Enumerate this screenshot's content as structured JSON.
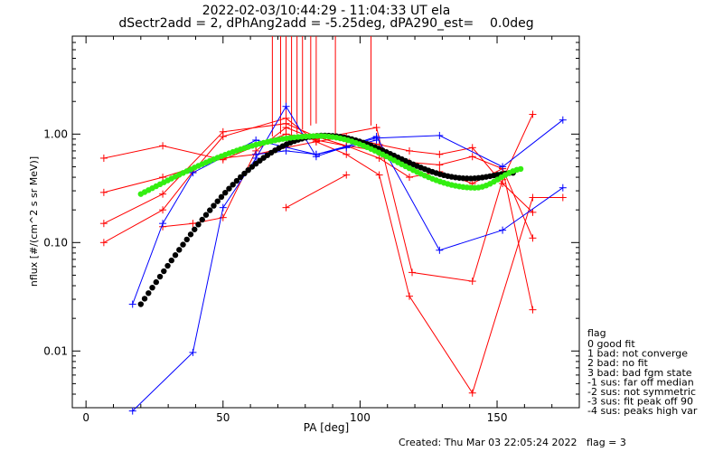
{
  "chart_data": {
    "type": "line",
    "title_line1": "2022-02-03/10:44:29 - 11:04:33 UT ela",
    "title_line2": "dSectr2add = 2, dPhAng2add = -5.25deg, dPA290_est=    0.0deg",
    "xlabel": "PA [deg]",
    "ylabel": "nflux [#/(cm^2 s sr MeV)]",
    "xlim": [
      -5,
      180
    ],
    "ylim": [
      0.003,
      8
    ],
    "yscale": "log",
    "x_ticks": [
      0,
      50,
      100,
      150
    ],
    "x_tick_labels": [
      "0",
      "50",
      "100",
      "150"
    ],
    "y_ticks": [
      0.01,
      0.1,
      1.0
    ],
    "y_tick_labels": [
      "0.01",
      "0.10",
      "1.00"
    ],
    "grid": false,
    "colors": {
      "red": "#ff0000",
      "blue": "#0000ff",
      "black": "#000000",
      "green": "#33ee11"
    },
    "red_series": [
      [
        [
          6.5,
          0.6
        ],
        [
          28,
          0.78
        ],
        [
          50,
          0.58
        ],
        [
          62,
          0.78
        ],
        [
          73,
          1.0
        ],
        [
          84,
          0.88
        ],
        [
          95,
          0.78
        ],
        [
          107,
          0.7
        ],
        [
          118,
          0.55
        ],
        [
          129,
          0.52
        ],
        [
          141,
          0.62
        ],
        [
          152,
          0.48
        ],
        [
          163,
          0.11
        ]
      ],
      [
        [
          6.5,
          0.29
        ],
        [
          28,
          0.4
        ],
        [
          50,
          0.6
        ],
        [
          62,
          0.65
        ],
        [
          73,
          0.75
        ],
        [
          84,
          0.85
        ],
        [
          95,
          0.95
        ],
        [
          107,
          0.8
        ],
        [
          118,
          0.7
        ],
        [
          129,
          0.65
        ],
        [
          141,
          0.75
        ],
        [
          152,
          0.35
        ],
        [
          163,
          0.19
        ]
      ],
      [
        [
          6.5,
          0.15
        ],
        [
          28,
          0.28
        ],
        [
          50,
          1.05
        ],
        [
          73,
          1.25
        ],
        [
          84,
          0.95
        ],
        [
          95,
          0.78
        ],
        [
          107,
          0.6
        ],
        [
          118,
          0.4
        ],
        [
          129,
          0.45
        ],
        [
          141,
          0.35
        ],
        [
          152,
          0.48
        ],
        [
          163,
          0.024
        ]
      ],
      [
        [
          6.5,
          0.1
        ],
        [
          28,
          0.2
        ],
        [
          39,
          0.45
        ],
        [
          50,
          0.95
        ],
        [
          73,
          1.4
        ],
        [
          84,
          0.85
        ],
        [
          95,
          0.65
        ],
        [
          107,
          0.42
        ],
        [
          118,
          0.032
        ],
        [
          141,
          0.0041
        ],
        [
          163,
          0.26
        ],
        [
          174,
          0.26
        ]
      ],
      [
        [
          28,
          0.14
        ],
        [
          39,
          0.15
        ],
        [
          50,
          0.17
        ],
        [
          62,
          0.7
        ],
        [
          73,
          1.15
        ],
        [
          84,
          0.9
        ],
        [
          106,
          1.15
        ],
        [
          119,
          0.053
        ],
        [
          141,
          0.044
        ],
        [
          152,
          0.38
        ],
        [
          163,
          1.52
        ]
      ],
      [
        [
          73,
          0.21
        ],
        [
          95,
          0.42
        ]
      ]
    ],
    "blue_series": [
      [
        [
          17,
          0.027
        ],
        [
          28,
          0.15
        ],
        [
          39,
          0.44
        ],
        [
          62,
          0.88
        ],
        [
          84,
          0.65
        ],
        [
          106,
          0.92
        ],
        [
          129,
          0.97
        ],
        [
          152,
          0.5
        ],
        [
          174,
          1.35
        ]
      ],
      [
        [
          17,
          0.0028
        ],
        [
          39,
          0.0097
        ],
        [
          50,
          0.21
        ],
        [
          62,
          0.6
        ],
        [
          73,
          1.8
        ],
        [
          84,
          0.62
        ],
        [
          106,
          0.95
        ],
        [
          129,
          0.085
        ],
        [
          152,
          0.13
        ],
        [
          174,
          0.32
        ]
      ],
      [
        [
          62,
          0.65
        ],
        [
          73,
          0.7
        ],
        [
          84,
          0.65
        ],
        [
          95,
          0.75
        ],
        [
          106,
          0.88
        ]
      ]
    ],
    "spikes": [
      {
        "x": 68,
        "y": 0.95
      },
      {
        "x": 71,
        "y": 1.0
      },
      {
        "x": 73,
        "y": 1.05
      },
      {
        "x": 75,
        "y": 0.9
      },
      {
        "x": 77,
        "y": 1.0
      },
      {
        "x": 79,
        "y": 1.1
      },
      {
        "x": 82,
        "y": 1.2
      },
      {
        "x": 84,
        "y": 1.25
      },
      {
        "x": 91,
        "y": 1.0
      },
      {
        "x": 104,
        "y": 1.2
      }
    ],
    "black_fit": {
      "x_start": 20,
      "x_end": 157,
      "y_min": 0.027,
      "y_peak": 0.97,
      "x_peak": 87,
      "y_min2": 0.39,
      "x_min2": 140,
      "y_end": 0.44
    },
    "green_fit": {
      "x_start": 20,
      "x_end": 160,
      "y_min": 0.28,
      "y_peak": 0.96,
      "x_peak": 85,
      "y_min2": 0.32,
      "x_min2": 142,
      "y_end": 0.48
    },
    "legend_title": "flag",
    "legend_entries": [
      " 0 good fit",
      " 1 bad: not converge",
      " 2 bad: no fit",
      " 3 bad: bad fgm state",
      "-1 sus: far off median",
      "-2 sus: not symmetric",
      "-3 sus: fit peak off 90",
      "-4 sus: peaks high var"
    ],
    "footer": "Created: Thu Mar 03 22:05:24 2022   flag = 3"
  }
}
